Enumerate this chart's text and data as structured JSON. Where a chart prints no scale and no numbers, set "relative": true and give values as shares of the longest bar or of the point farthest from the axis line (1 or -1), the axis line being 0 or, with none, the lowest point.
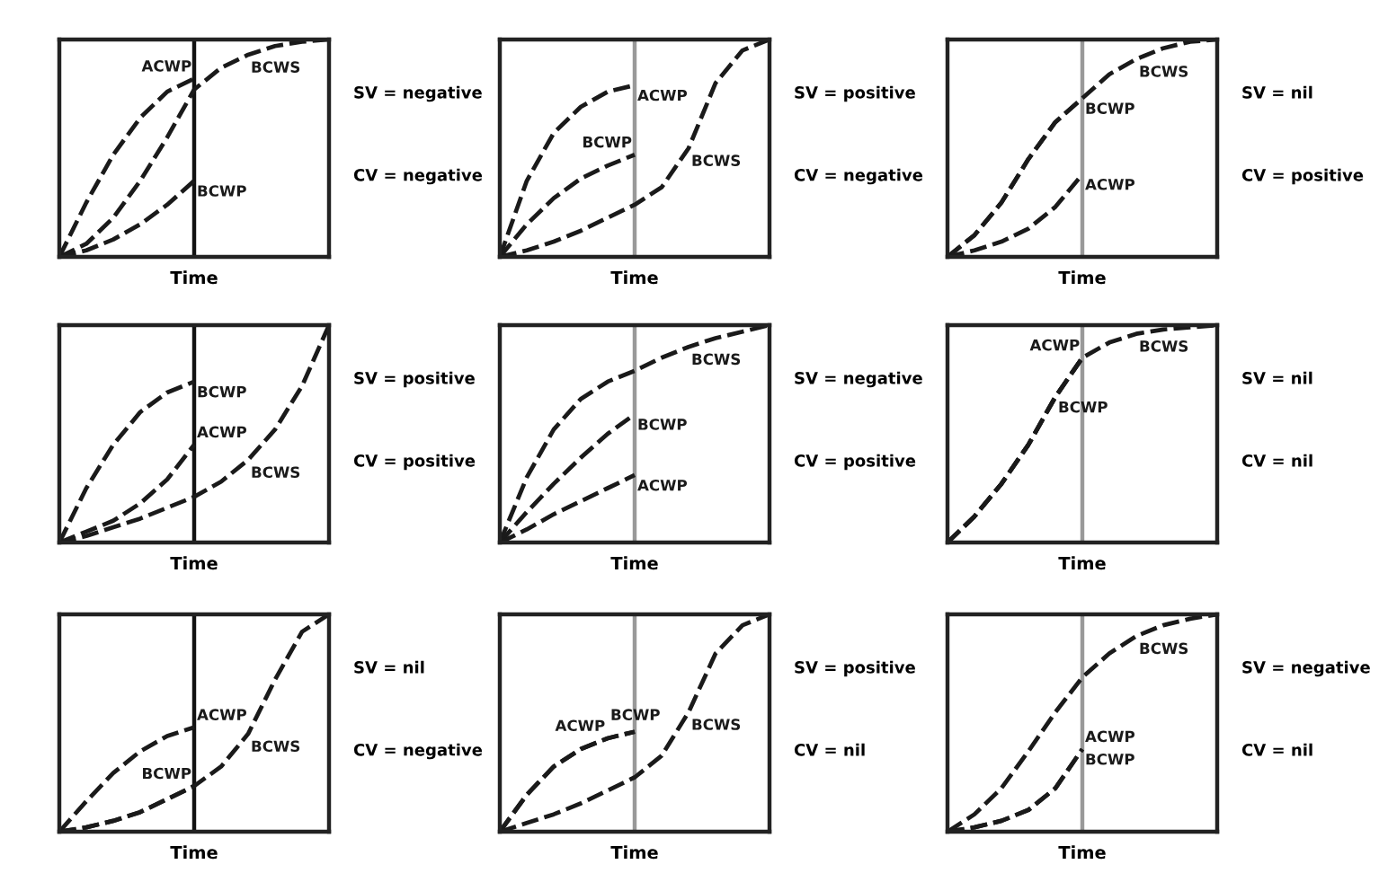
{
  "chart_data": [
    {
      "type": "line",
      "relative": true,
      "xlabel": "Time",
      "line_style": "dashed",
      "categories": [
        null,
        null,
        null,
        null,
        null,
        null,
        null,
        null,
        null,
        null,
        null
      ],
      "annotations": [
        "SV = negative",
        "CV = negative"
      ],
      "series": [
        {
          "name": "BCWS",
          "color": "#1a1a1a",
          "values": [
            0,
            0.06,
            0.18,
            0.35,
            0.55,
            0.77,
            0.87,
            0.93,
            0.97,
            0.99,
            1.0
          ]
        },
        {
          "name": "ACWP",
          "color": "#1a1a1a",
          "values": [
            0,
            0.25,
            0.47,
            0.64,
            0.76,
            0.82,
            null,
            null,
            null,
            null,
            null
          ]
        },
        {
          "name": "BCWP",
          "color": "#1a1a1a",
          "values": [
            0,
            0.03,
            0.08,
            0.15,
            0.24,
            0.35,
            null,
            null,
            null,
            null,
            null
          ]
        }
      ]
    },
    {
      "type": "line",
      "relative": true,
      "xlabel": "Time",
      "line_style": "dashed",
      "categories": [
        null,
        null,
        null,
        null,
        null,
        null,
        null,
        null,
        null,
        null,
        null
      ],
      "annotations": [
        "SV = positive",
        "CV = negative"
      ],
      "series": [
        {
          "name": "ACWP",
          "color": "#1a1a1a",
          "values": [
            0,
            0.35,
            0.57,
            0.69,
            0.76,
            0.79,
            null,
            null,
            null,
            null,
            null
          ]
        },
        {
          "name": "BCWP",
          "color": "#1a1a1a",
          "values": [
            0,
            0.15,
            0.27,
            0.36,
            0.42,
            0.47,
            null,
            null,
            null,
            null,
            null
          ]
        },
        {
          "name": "BCWS",
          "color": "#1a1a1a",
          "values": [
            0,
            0.03,
            0.07,
            0.12,
            0.18,
            0.24,
            0.32,
            0.5,
            0.8,
            0.95,
            1.0
          ]
        }
      ]
    },
    {
      "type": "line",
      "relative": true,
      "xlabel": "Time",
      "line_style": "dashed",
      "categories": [
        null,
        null,
        null,
        null,
        null,
        null,
        null,
        null,
        null,
        null,
        null
      ],
      "annotations": [
        "SV = nil",
        "CV = positive"
      ],
      "series": [
        {
          "name": "BCWP",
          "color": "#1a1a1a",
          "values": [
            0,
            0.1,
            0.25,
            0.45,
            0.62,
            0.73,
            null,
            null,
            null,
            null,
            null
          ]
        },
        {
          "name": "BCWS",
          "color": "#1a1a1a",
          "values": [
            0,
            0.1,
            0.25,
            0.45,
            0.62,
            0.73,
            0.84,
            0.91,
            0.96,
            0.99,
            1.0
          ]
        },
        {
          "name": "ACWP",
          "color": "#1a1a1a",
          "values": [
            0,
            0.03,
            0.07,
            0.13,
            0.23,
            0.38,
            null,
            null,
            null,
            null,
            null
          ]
        }
      ]
    },
    {
      "type": "line",
      "relative": true,
      "xlabel": "Time",
      "line_style": "dashed",
      "categories": [
        null,
        null,
        null,
        null,
        null,
        null,
        null,
        null,
        null,
        null,
        null
      ],
      "annotations": [
        "SV = positive",
        "CV = positive"
      ],
      "series": [
        {
          "name": "BCWP",
          "color": "#1a1a1a",
          "values": [
            0,
            0.25,
            0.45,
            0.6,
            0.69,
            0.74,
            null,
            null,
            null,
            null,
            null
          ]
        },
        {
          "name": "ACWP",
          "color": "#1a1a1a",
          "values": [
            0,
            0.05,
            0.1,
            0.18,
            0.29,
            0.45,
            null,
            null,
            null,
            null,
            null
          ]
        },
        {
          "name": "BCWS",
          "color": "#1a1a1a",
          "values": [
            0,
            0.03,
            0.07,
            0.11,
            0.16,
            0.21,
            0.28,
            0.38,
            0.52,
            0.72,
            1.0
          ]
        }
      ]
    },
    {
      "type": "line",
      "relative": true,
      "xlabel": "Time",
      "line_style": "dashed",
      "categories": [
        null,
        null,
        null,
        null,
        null,
        null,
        null,
        null,
        null,
        null,
        null
      ],
      "annotations": [
        "SV = negative",
        "CV = positive"
      ],
      "series": [
        {
          "name": "BCWS",
          "color": "#1a1a1a",
          "values": [
            0,
            0.3,
            0.52,
            0.66,
            0.74,
            0.79,
            0.85,
            0.9,
            0.94,
            0.97,
            1.0
          ]
        },
        {
          "name": "BCWP",
          "color": "#1a1a1a",
          "values": [
            0,
            0.14,
            0.27,
            0.39,
            0.5,
            0.59,
            null,
            null,
            null,
            null,
            null
          ]
        },
        {
          "name": "ACWP",
          "color": "#1a1a1a",
          "values": [
            0,
            0.06,
            0.13,
            0.19,
            0.25,
            0.31,
            null,
            null,
            null,
            null,
            null
          ]
        }
      ]
    },
    {
      "type": "line",
      "relative": true,
      "xlabel": "Time",
      "line_style": "dashed",
      "categories": [
        null,
        null,
        null,
        null,
        null,
        null,
        null,
        null,
        null,
        null,
        null
      ],
      "annotations": [
        "SV = nil",
        "CV = nil"
      ],
      "series": [
        {
          "name": "BCWS",
          "color": "#1a1a1a",
          "values": [
            0,
            0.12,
            0.27,
            0.45,
            0.67,
            0.85,
            0.92,
            0.96,
            0.98,
            0.99,
            1.0
          ]
        },
        {
          "name": "ACWP",
          "color": "#1a1a1a",
          "values": [
            0,
            0.12,
            0.27,
            0.45,
            0.67,
            0.85,
            null,
            null,
            null,
            null,
            null
          ]
        },
        {
          "name": "BCWP",
          "color": "#1a1a1a",
          "values": [
            0,
            0.12,
            0.27,
            0.45,
            0.67,
            0.85,
            null,
            null,
            null,
            null,
            null
          ]
        }
      ]
    },
    {
      "type": "line",
      "relative": true,
      "xlabel": "Time",
      "line_style": "dashed",
      "categories": [
        null,
        null,
        null,
        null,
        null,
        null,
        null,
        null,
        null,
        null,
        null
      ],
      "annotations": [
        "SV = nil",
        "CV = negative"
      ],
      "series": [
        {
          "name": "ACWP",
          "color": "#1a1a1a",
          "values": [
            0,
            0.14,
            0.27,
            0.37,
            0.44,
            0.48,
            null,
            null,
            null,
            null,
            null
          ]
        },
        {
          "name": "BCWS",
          "color": "#1a1a1a",
          "values": [
            0,
            0.02,
            0.05,
            0.09,
            0.15,
            0.21,
            0.3,
            0.45,
            0.7,
            0.92,
            1.0
          ]
        },
        {
          "name": "BCWP",
          "color": "#1a1a1a",
          "values": [
            0,
            0.02,
            0.05,
            0.09,
            0.15,
            0.21,
            null,
            null,
            null,
            null,
            null
          ]
        }
      ]
    },
    {
      "type": "line",
      "relative": true,
      "xlabel": "Time",
      "line_style": "dashed",
      "categories": [
        null,
        null,
        null,
        null,
        null,
        null,
        null,
        null,
        null,
        null,
        null
      ],
      "annotations": [
        "SV = positive",
        "CV = nil"
      ],
      "series": [
        {
          "name": "ACWP",
          "color": "#1a1a1a",
          "values": [
            0,
            0.17,
            0.3,
            0.38,
            0.43,
            0.46,
            null,
            null,
            null,
            null,
            null
          ]
        },
        {
          "name": "BCWP",
          "color": "#1a1a1a",
          "values": [
            0,
            0.17,
            0.3,
            0.38,
            0.43,
            0.46,
            null,
            null,
            null,
            null,
            null
          ]
        },
        {
          "name": "BCWS",
          "color": "#1a1a1a",
          "values": [
            0,
            0.04,
            0.08,
            0.13,
            0.19,
            0.25,
            0.35,
            0.55,
            0.82,
            0.95,
            1.0
          ]
        }
      ]
    },
    {
      "type": "line",
      "relative": true,
      "xlabel": "Time",
      "line_style": "dashed",
      "categories": [
        null,
        null,
        null,
        null,
        null,
        null,
        null,
        null,
        null,
        null,
        null
      ],
      "annotations": [
        "SV = negative",
        "CV = nil"
      ],
      "series": [
        {
          "name": "BCWS",
          "color": "#1a1a1a",
          "values": [
            0,
            0.08,
            0.2,
            0.37,
            0.55,
            0.71,
            0.82,
            0.9,
            0.95,
            0.98,
            1.0
          ]
        },
        {
          "name": "BCWP",
          "color": "#1a1a1a",
          "values": [
            0,
            0.02,
            0.05,
            0.1,
            0.2,
            0.38,
            null,
            null,
            null,
            null,
            null
          ]
        },
        {
          "name": "ACWP",
          "color": "#1a1a1a",
          "values": [
            0,
            0.02,
            0.05,
            0.1,
            0.2,
            0.38,
            null,
            null,
            null,
            null,
            null
          ]
        }
      ]
    }
  ]
}
